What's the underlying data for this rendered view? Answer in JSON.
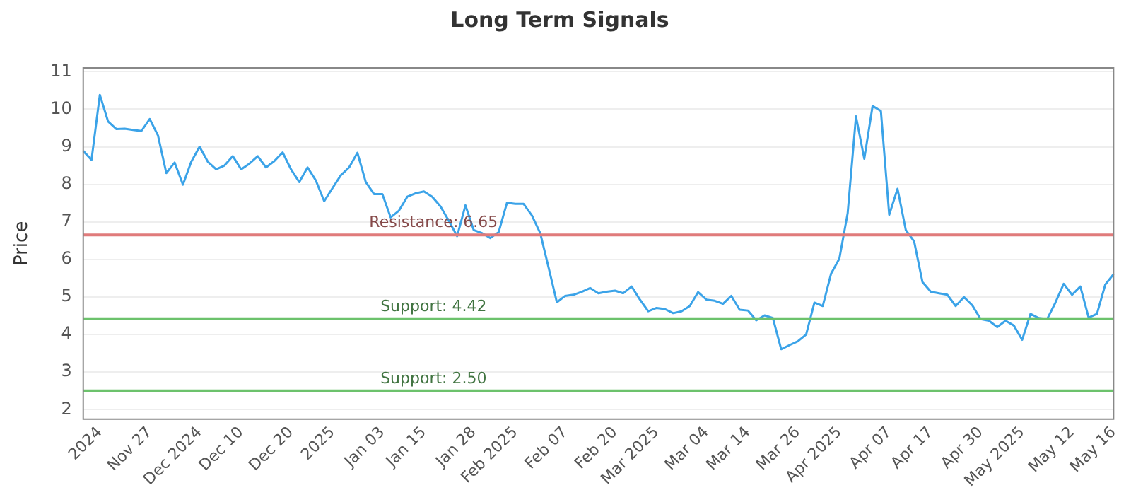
{
  "chart_data": {
    "type": "line",
    "title": "Long Term Signals",
    "ylabel": "Price",
    "categories": [
      null,
      null,
      "2024",
      null,
      null,
      null,
      null,
      null,
      "Nov 27",
      null,
      null,
      null,
      null,
      null,
      "Dec 2024",
      null,
      null,
      null,
      null,
      "Dec 10",
      null,
      null,
      null,
      null,
      null,
      "Dec 20",
      null,
      null,
      null,
      null,
      "2025",
      null,
      null,
      null,
      null,
      null,
      "Jan 03",
      null,
      null,
      null,
      null,
      "Jan 15",
      null,
      null,
      null,
      null,
      null,
      "Jan 28",
      null,
      null,
      null,
      null,
      "Feb 2025",
      null,
      null,
      null,
      null,
      null,
      "Feb 07",
      null,
      null,
      null,
      null,
      null,
      "Feb 20",
      null,
      null,
      null,
      null,
      "Mar 2025",
      null,
      null,
      null,
      null,
      null,
      "Mar 04",
      null,
      null,
      null,
      null,
      "Mar 14",
      null,
      null,
      null,
      null,
      null,
      "Mar 26",
      null,
      null,
      null,
      null,
      "Apr 2025",
      null,
      null,
      null,
      null,
      null,
      "Apr 07",
      null,
      null,
      null,
      null,
      "Apr 17",
      null,
      null,
      null,
      null,
      null,
      "Apr 30",
      null,
      null,
      null,
      null,
      "May 2025",
      null,
      null,
      null,
      null,
      null,
      "May 12",
      null,
      null,
      null,
      null,
      "May 16"
    ],
    "series": [
      {
        "color": "#3ba3e8",
        "values": [
          8.89,
          8.65,
          10.38,
          9.67,
          9.47,
          9.48,
          9.45,
          9.42,
          9.74,
          9.3,
          8.3,
          8.58,
          7.99,
          8.6,
          9.0,
          8.6,
          8.4,
          8.5,
          8.75,
          8.4,
          8.55,
          8.75,
          8.45,
          8.62,
          8.85,
          8.4,
          8.06,
          8.45,
          8.1,
          7.55,
          7.9,
          8.24,
          8.45,
          8.84,
          8.06,
          7.74,
          7.74,
          7.12,
          7.3,
          7.67,
          7.76,
          7.81,
          7.67,
          7.41,
          7.03,
          6.62,
          7.44,
          6.78,
          6.7,
          6.57,
          6.73,
          7.51,
          7.48,
          7.48,
          7.17,
          6.7,
          5.79,
          4.86,
          5.03,
          5.06,
          5.14,
          5.24,
          5.1,
          5.14,
          5.17,
          5.1,
          5.28,
          4.93,
          4.62,
          4.71,
          4.68,
          4.57,
          4.62,
          4.76,
          5.13,
          4.93,
          4.9,
          4.82,
          5.03,
          4.66,
          4.64,
          4.38,
          4.51,
          4.44,
          3.61,
          3.72,
          3.82,
          4.0,
          4.85,
          4.76,
          5.62,
          6.02,
          7.23,
          9.81,
          8.68,
          10.09,
          9.95,
          7.19,
          7.88,
          6.78,
          6.48,
          5.4,
          5.14,
          5.1,
          5.06,
          4.76,
          5.0,
          4.78,
          4.41,
          4.37,
          4.2,
          4.37,
          4.24,
          3.86,
          4.55,
          4.44,
          4.41,
          4.85,
          5.35,
          5.06,
          5.28,
          4.45,
          4.55,
          5.33,
          5.61
        ]
      }
    ],
    "ylim": [
      1.75,
      11.1
    ],
    "yticks": [
      2,
      3,
      4,
      5,
      6,
      7,
      8,
      9,
      10,
      11
    ],
    "grid": "y",
    "legend": false,
    "marker": "none",
    "ref_lines": [
      {
        "axis": "y",
        "value": 6.65,
        "label": "Resistance: 6.65",
        "color": "#e07b7b"
      },
      {
        "axis": "y",
        "value": 4.42,
        "label": "Support: 4.42",
        "color": "#6cc26c"
      },
      {
        "axis": "y",
        "value": 2.5,
        "label": "Support: 2.50",
        "color": "#6cc26c"
      }
    ]
  }
}
